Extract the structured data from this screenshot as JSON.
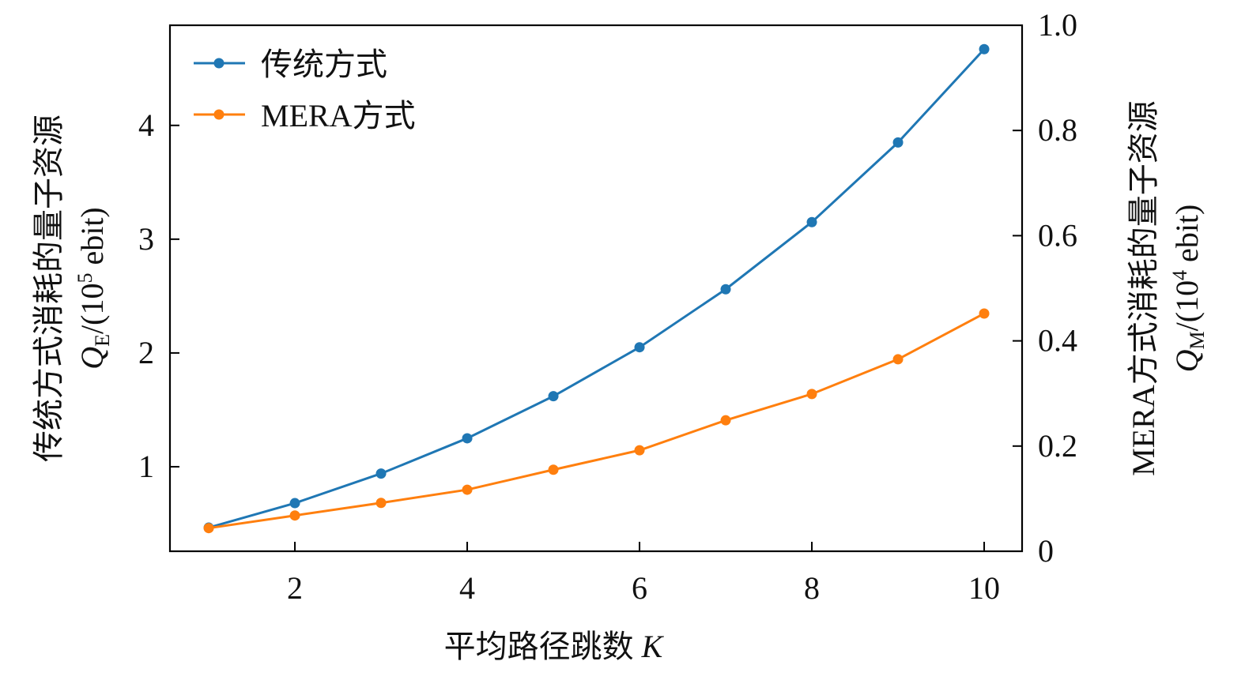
{
  "chart_data": {
    "type": "line",
    "title": "",
    "xlabel": "平均路径跳数",
    "xlabel_var": "K",
    "ylabel_left": {
      "line1": "传统方式消耗的量子资源",
      "var": "Q",
      "sub": "E",
      "unit_pre": "/(10",
      "exp": "5",
      "unit_post": " ebit)"
    },
    "ylabel_right": {
      "line1": "MERA方式消耗的量子资源",
      "var": "Q",
      "sub": "M",
      "unit_pre": "/(10",
      "exp": "4",
      "unit_post": " ebit)"
    },
    "xlim": [
      0.55,
      10.44
    ],
    "ylim_left": [
      0.257,
      4.88
    ],
    "ylim_right": [
      0,
      1.0
    ],
    "xticks": [
      2,
      4,
      6,
      8,
      10
    ],
    "yticks_left": [
      1,
      2,
      3,
      4
    ],
    "yticks_right": [
      "0",
      "0.2",
      "0.4",
      "0.6",
      "0.8",
      "1.0"
    ],
    "legend_position": "top-left",
    "grid": false,
    "x": [
      1,
      2,
      3,
      4,
      5,
      6,
      7,
      8,
      9,
      10
    ],
    "series": [
      {
        "name": "传统方式",
        "axis": "left",
        "color": "#1f77b4",
        "values": [
          0.465,
          0.68,
          0.94,
          1.25,
          1.62,
          2.05,
          2.56,
          3.15,
          3.85,
          4.67
        ]
      },
      {
        "name": "MERA方式",
        "axis": "right",
        "color": "#ff7f0e",
        "values": [
          0.044,
          0.068,
          0.092,
          0.117,
          0.155,
          0.192,
          0.249,
          0.299,
          0.365,
          0.452
        ]
      }
    ]
  }
}
